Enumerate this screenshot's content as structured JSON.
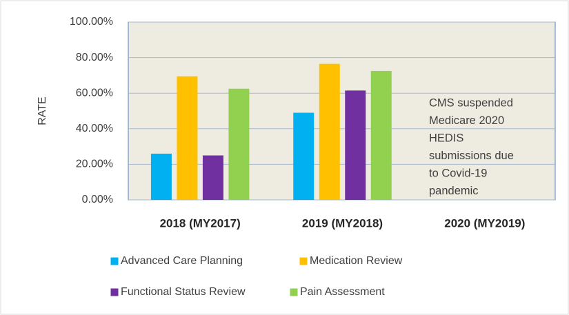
{
  "chart_data": {
    "type": "bar",
    "categories": [
      "2018 (MY2017)",
      "2019 (MY2018)",
      "2020 (MY2019)"
    ],
    "series": [
      {
        "name": "Advanced Care Planning",
        "color": "#00b0f0",
        "values": [
          26,
          49,
          null
        ]
      },
      {
        "name": "Medication Review",
        "color": "#ffc000",
        "values": [
          69.5,
          76.5,
          null
        ]
      },
      {
        "name": "Functional Status Review",
        "color": "#7030a0",
        "values": [
          25,
          61.5,
          null
        ]
      },
      {
        "name": "Pain Assessment",
        "color": "#92d050",
        "values": [
          62.5,
          72.5,
          null
        ]
      }
    ],
    "y_label": "RATE",
    "ylim": [
      0,
      100
    ],
    "yticks": [
      {
        "value": 0,
        "label": "0.00%"
      },
      {
        "value": 20,
        "label": "20.00%"
      },
      {
        "value": 40,
        "label": "40.00%"
      },
      {
        "value": 60,
        "label": "60.00%"
      },
      {
        "value": 80,
        "label": "80.00%"
      },
      {
        "value": 100,
        "label": "100.00%"
      }
    ],
    "grid": true,
    "annotation": [
      "CMS suspended",
      "Medicare 2020",
      "HEDIS",
      "submissions due",
      "to Covid-19",
      "pandemic"
    ],
    "legend": "bottom"
  }
}
